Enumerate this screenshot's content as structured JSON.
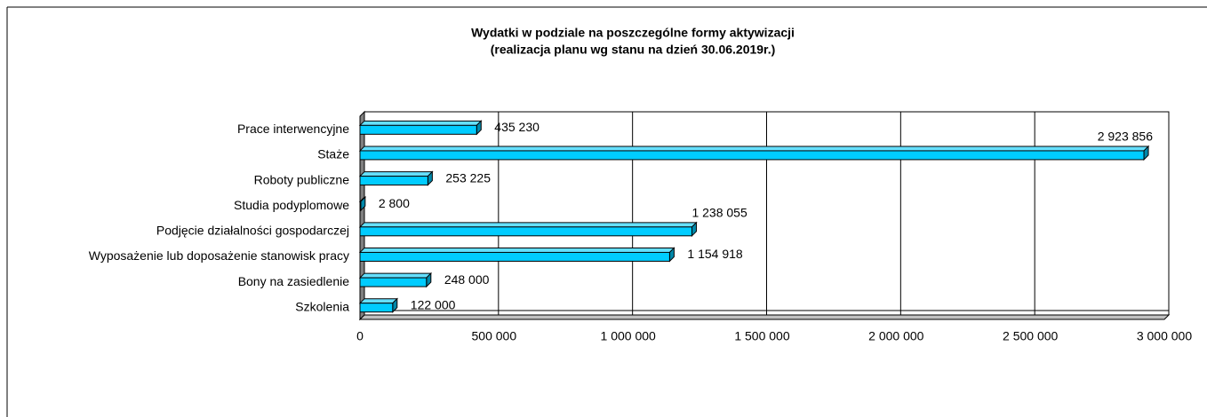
{
  "chart_data": {
    "type": "bar",
    "orientation": "horizontal",
    "title": "Wydatki w podziale na poszczególne formy aktywizacji",
    "subtitle": "(realizacja planu wg stanu na dzień 30.06.2019r.)",
    "categories": [
      "Prace interwencyjne",
      "Staże",
      "Roboty publiczne",
      "Studia podyplomowe",
      "Podjęcie działalności gospodarczej",
      "Wyposażenie lub doposażenie stanowisk pracy",
      "Bony na zasiedlenie",
      "Szkolenia"
    ],
    "values": [
      435230,
      2923856,
      253225,
      2800,
      1238055,
      1154918,
      248000,
      122000
    ],
    "value_labels": [
      "435 230",
      "2 923 856",
      "253 225",
      "2 800",
      "1 238 055",
      "1 154 918",
      "248 000",
      "122 000"
    ],
    "color": "#00ccff",
    "xlim": [
      0,
      3000000
    ],
    "xticks": [
      0,
      {
        "value": 500000,
        "label": "500 000"
      },
      {
        "value": 1000000,
        "label": "1 000 000"
      },
      {
        "value": 1500000,
        "label": "1 500 000"
      },
      {
        "value": 2000000,
        "label": "2 000 000"
      },
      {
        "value": 2500000,
        "label": "2 500 000"
      },
      {
        "value": 3000000,
        "label": "3 000 000"
      }
    ],
    "grid": true
  }
}
